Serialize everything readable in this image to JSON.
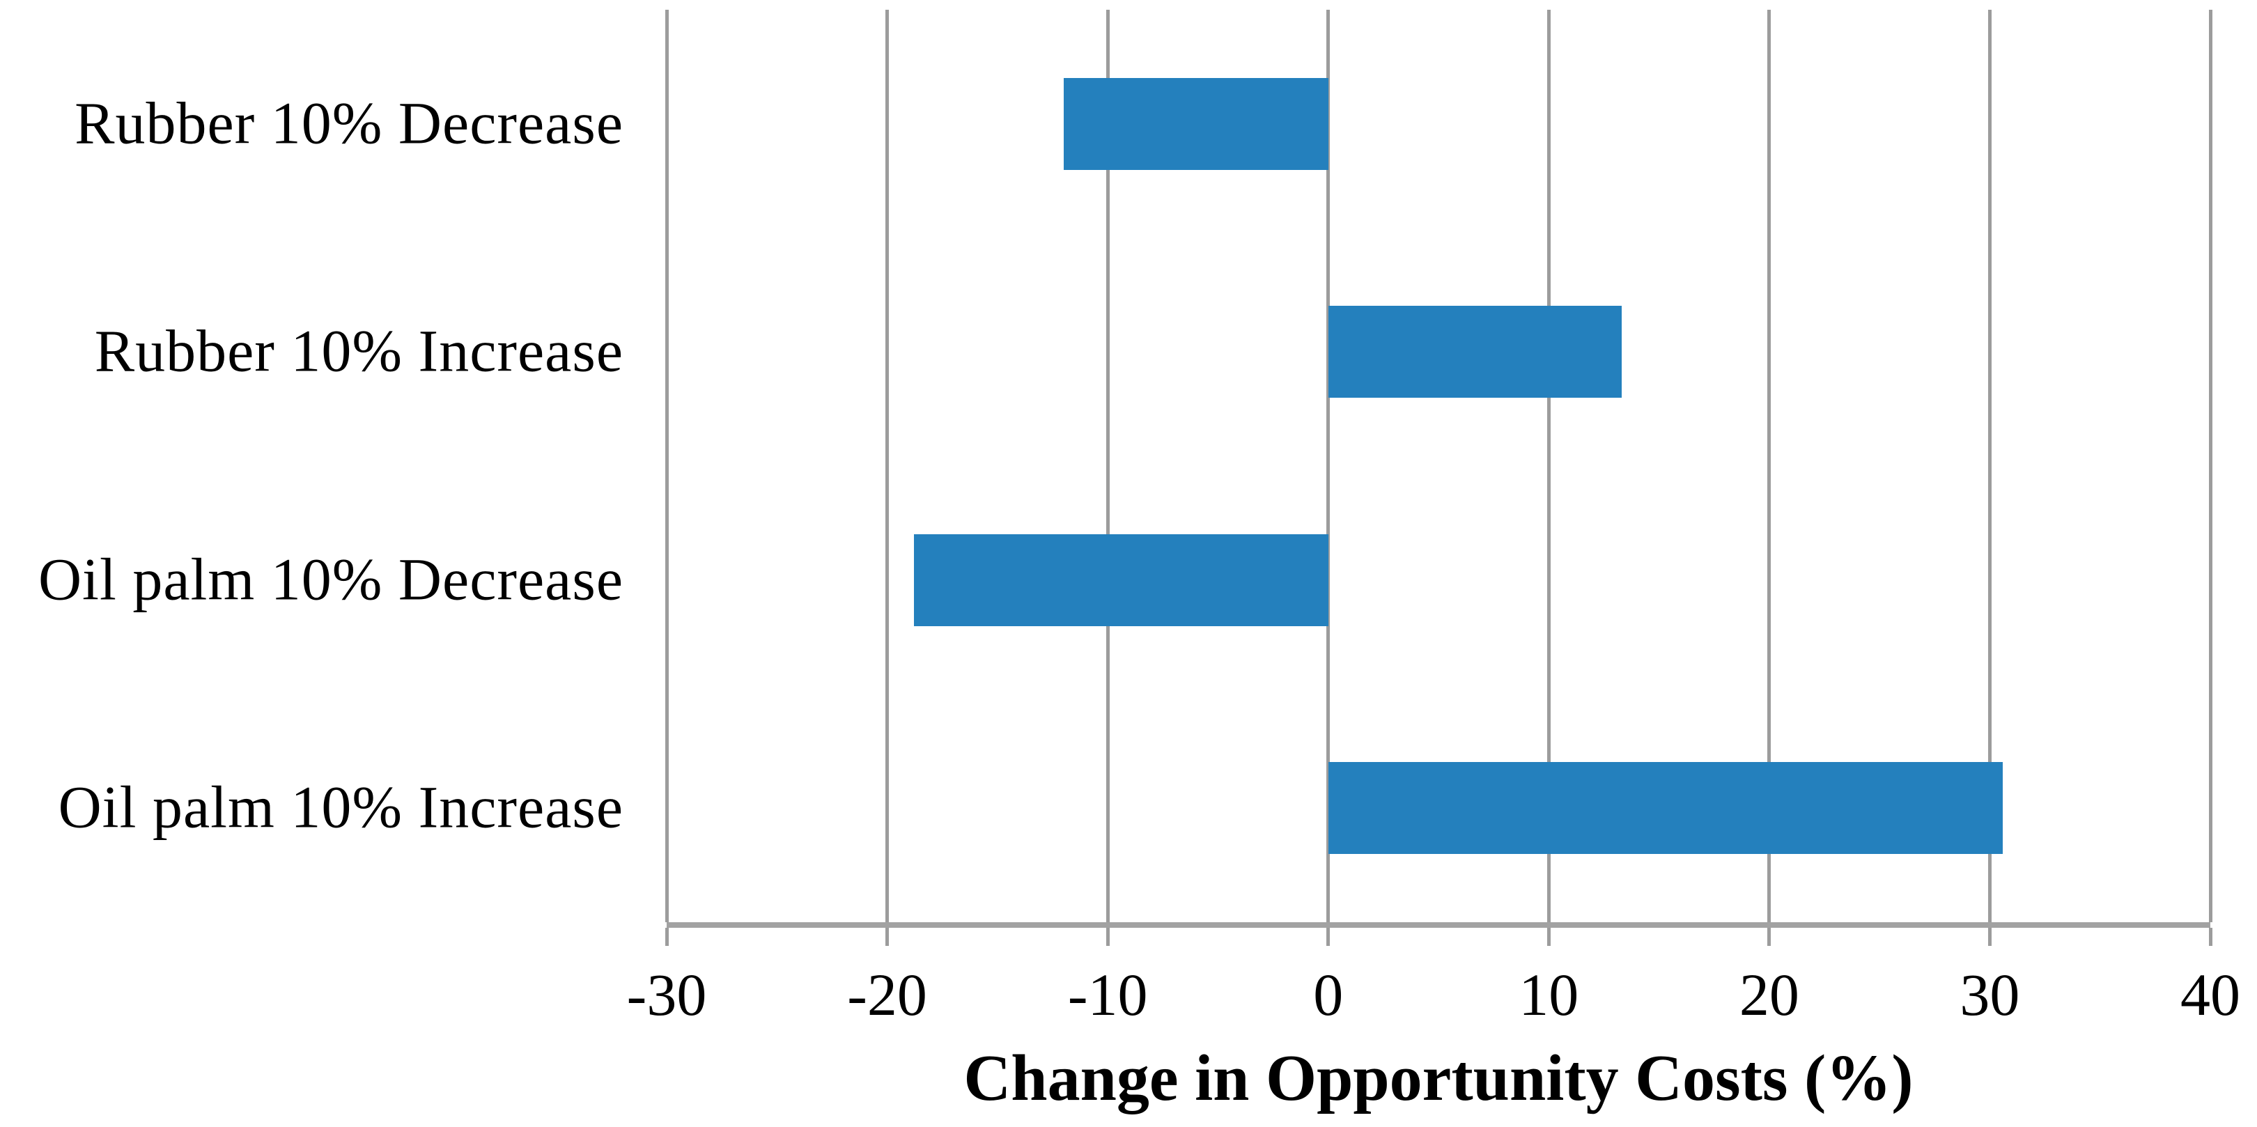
{
  "chart_data": {
    "type": "bar",
    "orientation": "horizontal",
    "categories": [
      "Rubber 10% Decrease",
      "Rubber 10% Increase",
      "Oil palm 10% Decrease",
      "Oil palm 10% Increase"
    ],
    "values": [
      -12,
      13.3,
      -18.8,
      30.6
    ],
    "title": "",
    "xlabel": "Change in Opportunity Costs (%)",
    "ylabel": "",
    "xlim": [
      -30,
      40
    ],
    "xticks": [
      -30,
      -20,
      -10,
      0,
      10,
      20,
      30,
      40
    ],
    "tick_labels": [
      "-30",
      "-20",
      "-10",
      "0",
      "10",
      "20",
      "30",
      "40"
    ],
    "grid": true,
    "legend": "none",
    "bar_color": "#2480BD",
    "gridline_color": "#9c9c9c",
    "axis_line_color": "#a2a2a2",
    "text_color": "#000000"
  }
}
